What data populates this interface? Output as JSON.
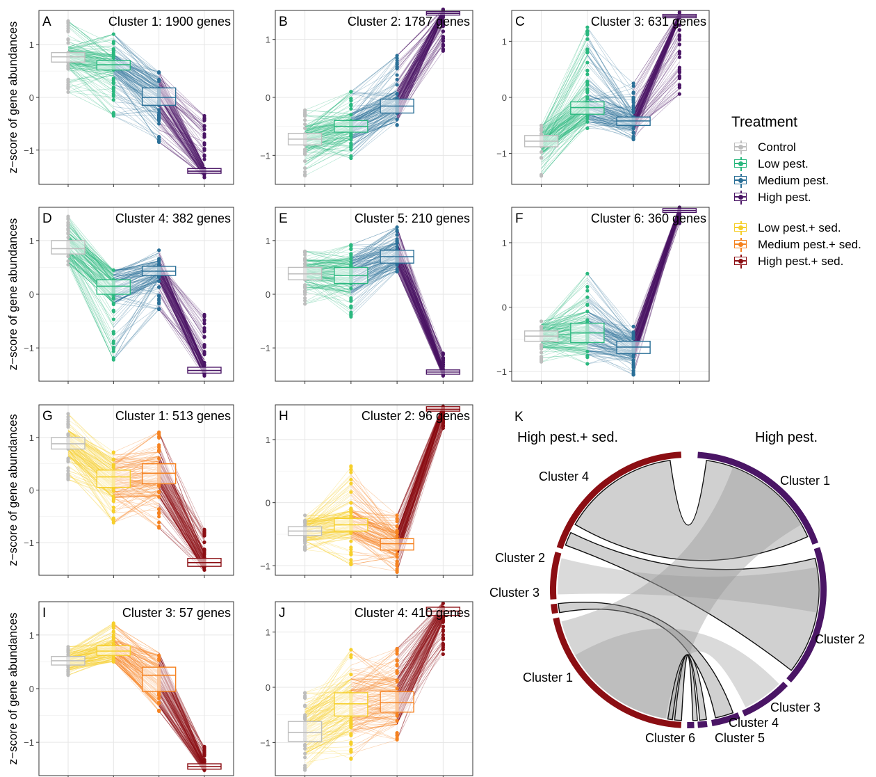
{
  "colors": {
    "Control": "#bdbdbd",
    "Low pest.": "#2bb87f",
    "Medium pest.": "#2a6f97",
    "High pest.": "#4a1565",
    "Low pest.+ sed.": "#f6cf2b",
    "Medium pest.+ sed.": "#f58220",
    "High pest.+ sed.": "#8b0e13"
  },
  "legend": {
    "title": "Treatment",
    "group1": [
      "Control",
      "Low pest.",
      "Medium pest.",
      "High pest."
    ],
    "group2": [
      "Low pest.+ sed.",
      "Medium pest.+ sed.",
      "High pest.+ sed."
    ]
  },
  "ylabel": "z−score of gene abundances",
  "chart_data": [
    {
      "panel": "A",
      "type": "box-line",
      "title": "Cluster 1: 1900 genes",
      "ylabel": "z−score of gene abundances",
      "treatments": [
        "Control",
        "Low pest.",
        "Medium pest.",
        "High pest."
      ],
      "ylim": [
        -1.65,
        1.65
      ],
      "yticks": [
        -1,
        0,
        1
      ],
      "medians": [
        0.77,
        0.62,
        0.0,
        -1.4
      ],
      "q1": [
        0.67,
        0.52,
        -0.15,
        -1.44
      ],
      "q3": [
        0.85,
        0.7,
        0.18,
        -1.35
      ],
      "min": [
        0.1,
        -0.35,
        -0.85,
        -1.52
      ],
      "max": [
        1.45,
        1.2,
        0.48,
        -0.35
      ]
    },
    {
      "panel": "B",
      "type": "box-line",
      "title": "Cluster 2: 1787 genes",
      "treatments": [
        "Control",
        "Low pest.",
        "Medium pest.",
        "High pest."
      ],
      "ylim": [
        -1.5,
        1.5
      ],
      "yticks": [
        -1,
        0,
        1
      ],
      "medians": [
        -0.72,
        -0.5,
        -0.15,
        1.45
      ],
      "q1": [
        -0.82,
        -0.6,
        -0.27,
        1.42
      ],
      "q3": [
        -0.62,
        -0.4,
        -0.03,
        1.48
      ],
      "min": [
        -1.35,
        -1.05,
        -0.48,
        0.8
      ],
      "max": [
        -0.22,
        0.1,
        0.72,
        1.52
      ]
    },
    {
      "panel": "C",
      "type": "box-line",
      "title": "Cluster 3: 631 genes",
      "treatments": [
        "Control",
        "Low pest.",
        "Medium pest.",
        "High pest."
      ],
      "ylim": [
        -1.55,
        1.55
      ],
      "yticks": [
        -1,
        0,
        1
      ],
      "medians": [
        -0.78,
        -0.18,
        -0.42,
        1.45
      ],
      "q1": [
        -0.88,
        -0.3,
        -0.5,
        1.42
      ],
      "q3": [
        -0.68,
        -0.08,
        -0.35,
        1.48
      ],
      "min": [
        -1.4,
        -0.55,
        -0.75,
        0.06
      ],
      "max": [
        -0.5,
        1.25,
        0.25,
        1.52
      ]
    },
    {
      "panel": "D",
      "type": "box-line",
      "title": "Cluster 4: 382 genes",
      "treatments": [
        "Control",
        "Low pest.",
        "Medium pest.",
        "High pest."
      ],
      "ylim": [
        -1.62,
        1.62
      ],
      "yticks": [
        -1,
        0,
        1
      ],
      "medians": [
        0.85,
        0.15,
        0.43,
        -1.42
      ],
      "q1": [
        0.75,
        0.0,
        0.35,
        -1.47
      ],
      "q3": [
        1.0,
        0.27,
        0.52,
        -1.36
      ],
      "min": [
        0.55,
        -1.22,
        -0.28,
        -1.52
      ],
      "max": [
        1.45,
        0.45,
        0.82,
        -0.38
      ]
    },
    {
      "panel": "E",
      "type": "box-line",
      "title": "Cluster 5: 210 genes",
      "treatments": [
        "Control",
        "Low pest.",
        "Medium pest.",
        "High pest."
      ],
      "ylim": [
        -1.62,
        1.62
      ],
      "yticks": [
        -1,
        0,
        1
      ],
      "medians": [
        0.38,
        0.35,
        0.7,
        -1.45
      ],
      "q1": [
        0.27,
        0.2,
        0.58,
        -1.49
      ],
      "q3": [
        0.5,
        0.5,
        0.82,
        -1.41
      ],
      "min": [
        -0.18,
        -0.42,
        0.42,
        -1.52
      ],
      "max": [
        0.8,
        0.92,
        1.25,
        -1.1
      ]
    },
    {
      "panel": "F",
      "type": "box-line",
      "title": "Cluster 6: 360 genes",
      "treatments": [
        "Control",
        "Low pest.",
        "Medium pest.",
        "High pest."
      ],
      "ylim": [
        -1.15,
        1.55
      ],
      "yticks": [
        -1,
        0,
        1
      ],
      "medians": [
        -0.45,
        -0.4,
        -0.62,
        1.5
      ],
      "q1": [
        -0.53,
        -0.55,
        -0.72,
        1.47
      ],
      "q3": [
        -0.37,
        -0.25,
        -0.53,
        1.53
      ],
      "min": [
        -0.85,
        -0.88,
        -1.05,
        1.3
      ],
      "max": [
        -0.22,
        0.52,
        -0.3,
        1.55
      ]
    },
    {
      "panel": "G",
      "type": "box-line",
      "title": "Cluster 1: 513 genes",
      "treatments": [
        "Control",
        "Low pest.+ sed.",
        "Medium pest.+ sed.",
        "High pest.+ sed."
      ],
      "ylim": [
        -1.62,
        1.62
      ],
      "yticks": [
        -1,
        0,
        1
      ],
      "medians": [
        0.88,
        0.25,
        0.32,
        -1.38
      ],
      "q1": [
        0.78,
        0.05,
        0.12,
        -1.45
      ],
      "q3": [
        1.0,
        0.38,
        0.5,
        -1.3
      ],
      "min": [
        0.2,
        -0.62,
        -0.72,
        -1.52
      ],
      "max": [
        1.45,
        0.72,
        1.1,
        -0.75
      ]
    },
    {
      "panel": "H",
      "type": "box-line",
      "title": "Cluster 2: 96 genes",
      "treatments": [
        "Control",
        "Low pest.+ sed.",
        "Medium pest.+ sed.",
        "High pest.+ sed."
      ],
      "ylim": [
        -1.15,
        1.55
      ],
      "yticks": [
        -1,
        0,
        1
      ],
      "medians": [
        -0.45,
        -0.35,
        -0.65,
        1.48
      ],
      "q1": [
        -0.52,
        -0.45,
        -0.75,
        1.45
      ],
      "q3": [
        -0.38,
        -0.25,
        -0.57,
        1.52
      ],
      "min": [
        -0.75,
        -0.98,
        -1.1,
        1.18
      ],
      "max": [
        -0.2,
        0.58,
        -0.2,
        1.52
      ]
    },
    {
      "panel": "I",
      "type": "box-line",
      "title": "Cluster 3: 57 genes",
      "treatments": [
        "Control",
        "Low pest.+ sed.",
        "Medium pest.+ sed.",
        "High pest.+ sed."
      ],
      "ylim": [
        -1.62,
        1.62
      ],
      "yticks": [
        -1,
        0,
        1
      ],
      "medians": [
        0.52,
        0.7,
        0.25,
        -1.45
      ],
      "q1": [
        0.44,
        0.62,
        -0.05,
        -1.5
      ],
      "q3": [
        0.6,
        0.8,
        0.4,
        -1.4
      ],
      "min": [
        0.25,
        0.5,
        -0.42,
        -1.52
      ],
      "max": [
        0.78,
        1.22,
        0.62,
        -1.08
      ]
    },
    {
      "panel": "J",
      "type": "box-line",
      "title": "Cluster 4: 410 genes",
      "treatments": [
        "Control",
        "Low pest.+ sed.",
        "Medium pest.+ sed.",
        "High pest.+ sed."
      ],
      "ylim": [
        -1.6,
        1.55
      ],
      "yticks": [
        -1,
        0,
        1
      ],
      "medians": [
        -0.82,
        -0.3,
        -0.28,
        1.38
      ],
      "q1": [
        -0.98,
        -0.52,
        -0.45,
        1.3
      ],
      "q3": [
        -0.62,
        -0.1,
        -0.08,
        1.45
      ],
      "min": [
        -1.5,
        -1.3,
        -0.95,
        0.6
      ],
      "max": [
        -0.1,
        0.68,
        0.7,
        1.52
      ]
    },
    {
      "panel": "K",
      "type": "chord",
      "left_group": "High pest.+ sed.",
      "right_group": "High pest.",
      "left_sectors": [
        {
          "name": "Cluster 1",
          "size": 513
        },
        {
          "name": "Cluster 3",
          "size": 57
        },
        {
          "name": "Cluster 2",
          "size": 96
        },
        {
          "name": "Cluster 4",
          "size": 410
        }
      ],
      "right_sectors": [
        {
          "name": "Cluster 1",
          "size": 1900
        },
        {
          "name": "Cluster 2",
          "size": 1787
        },
        {
          "name": "Cluster 3",
          "size": 631
        },
        {
          "name": "Cluster 4",
          "size": 382
        },
        {
          "name": "Cluster 5",
          "size": 210
        },
        {
          "name": "Cluster 6",
          "size": 360
        }
      ],
      "links": [
        {
          "from": "Cluster 4",
          "to": "Cluster 1",
          "highlight": true
        },
        {
          "from": "Cluster 4",
          "to": "Cluster 2",
          "highlight": true
        },
        {
          "from": "Cluster 2",
          "to": "Cluster 2"
        },
        {
          "from": "Cluster 3",
          "to": "Cluster 4",
          "highlight": true
        },
        {
          "from": "Cluster 1",
          "to": "Cluster 1"
        },
        {
          "from": "Cluster 1",
          "to": "Cluster 3"
        },
        {
          "from": "Cluster 1",
          "to": "Cluster 6",
          "highlight": true
        },
        {
          "from": "Cluster 1",
          "to": "Cluster 5",
          "highlight": true
        }
      ]
    }
  ]
}
